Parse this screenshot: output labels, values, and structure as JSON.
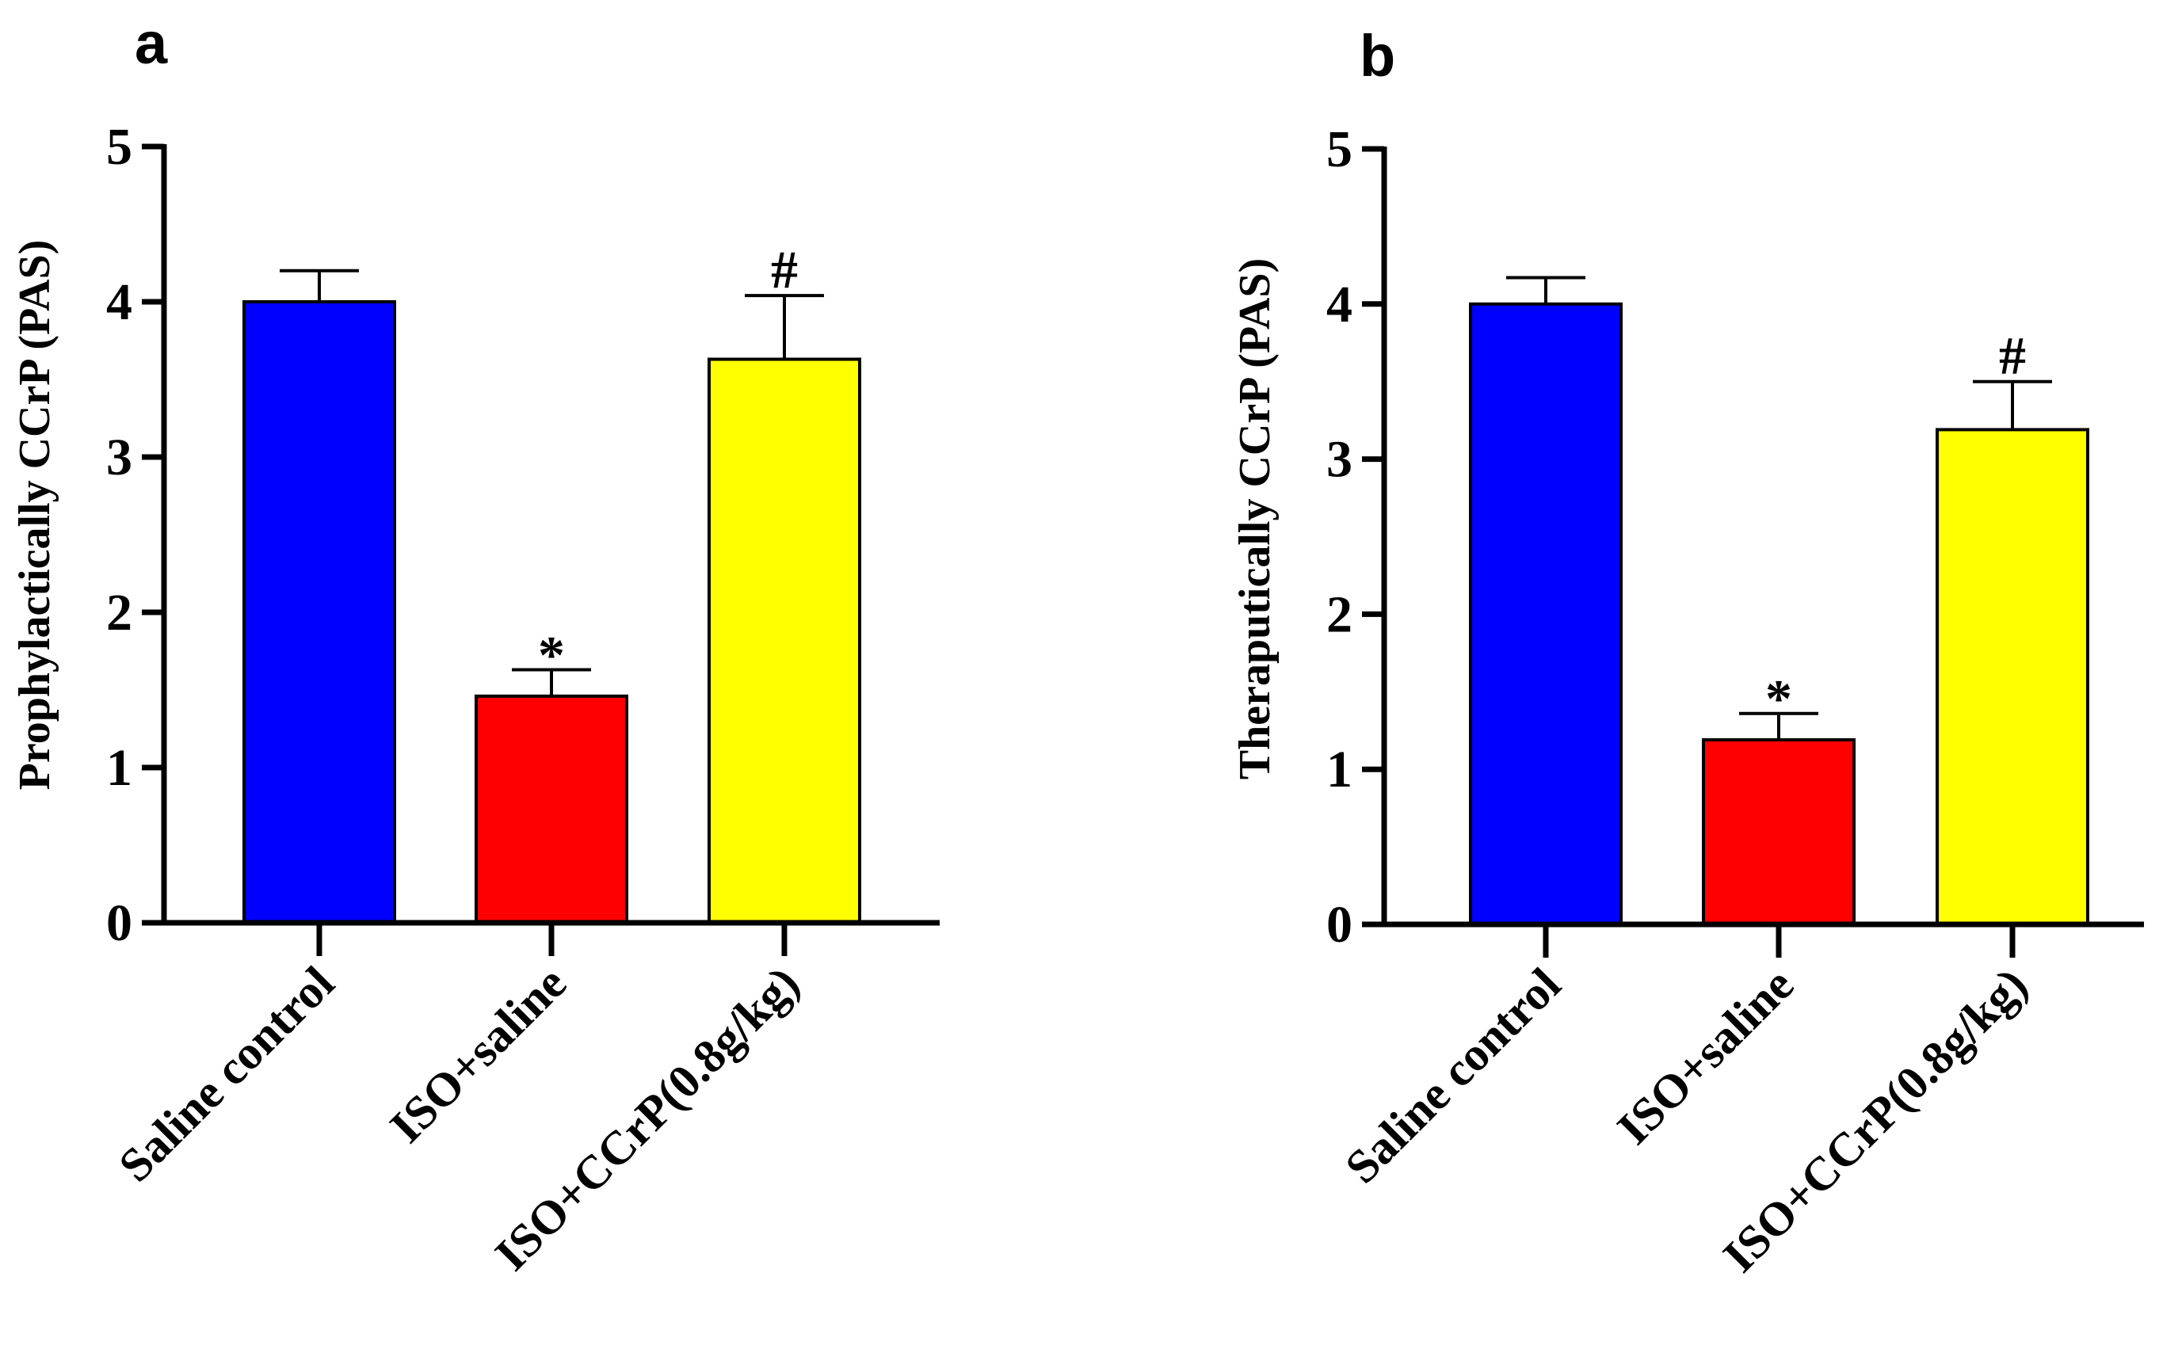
{
  "chart_data": [
    {
      "panel_label": "a",
      "type": "bar",
      "ylabel": "Prophylactically CCrP (PAS)",
      "xlabel": "",
      "ylim": [
        0,
        5
      ],
      "yticks": [
        "0",
        "1",
        "2",
        "3",
        "4",
        "5"
      ],
      "categories": [
        "Saline control",
        "ISO+saline",
        "ISO+CCrP(0.8g/kg)"
      ],
      "values": [
        4.0,
        1.46,
        3.63
      ],
      "errors": [
        0.2,
        0.17,
        0.41
      ],
      "colors": [
        "#0000ff",
        "#ff0000",
        "#ffff00"
      ],
      "annotations": [
        "",
        "*",
        "#"
      ]
    },
    {
      "panel_label": "b",
      "type": "bar",
      "ylabel": "Theraputically CCrP (PAS)",
      "xlabel": "",
      "ylim": [
        0,
        5
      ],
      "yticks": [
        "0",
        "1",
        "2",
        "3",
        "4",
        "5"
      ],
      "categories": [
        "Saline control",
        "ISO+saline",
        "ISO+CCrP(0.8g/kg)"
      ],
      "values": [
        4.0,
        1.19,
        3.19
      ],
      "errors": [
        0.17,
        0.17,
        0.31
      ],
      "colors": [
        "#0000ff",
        "#ff0000",
        "#ffff00"
      ],
      "annotations": [
        "",
        "*",
        "#"
      ]
    }
  ]
}
